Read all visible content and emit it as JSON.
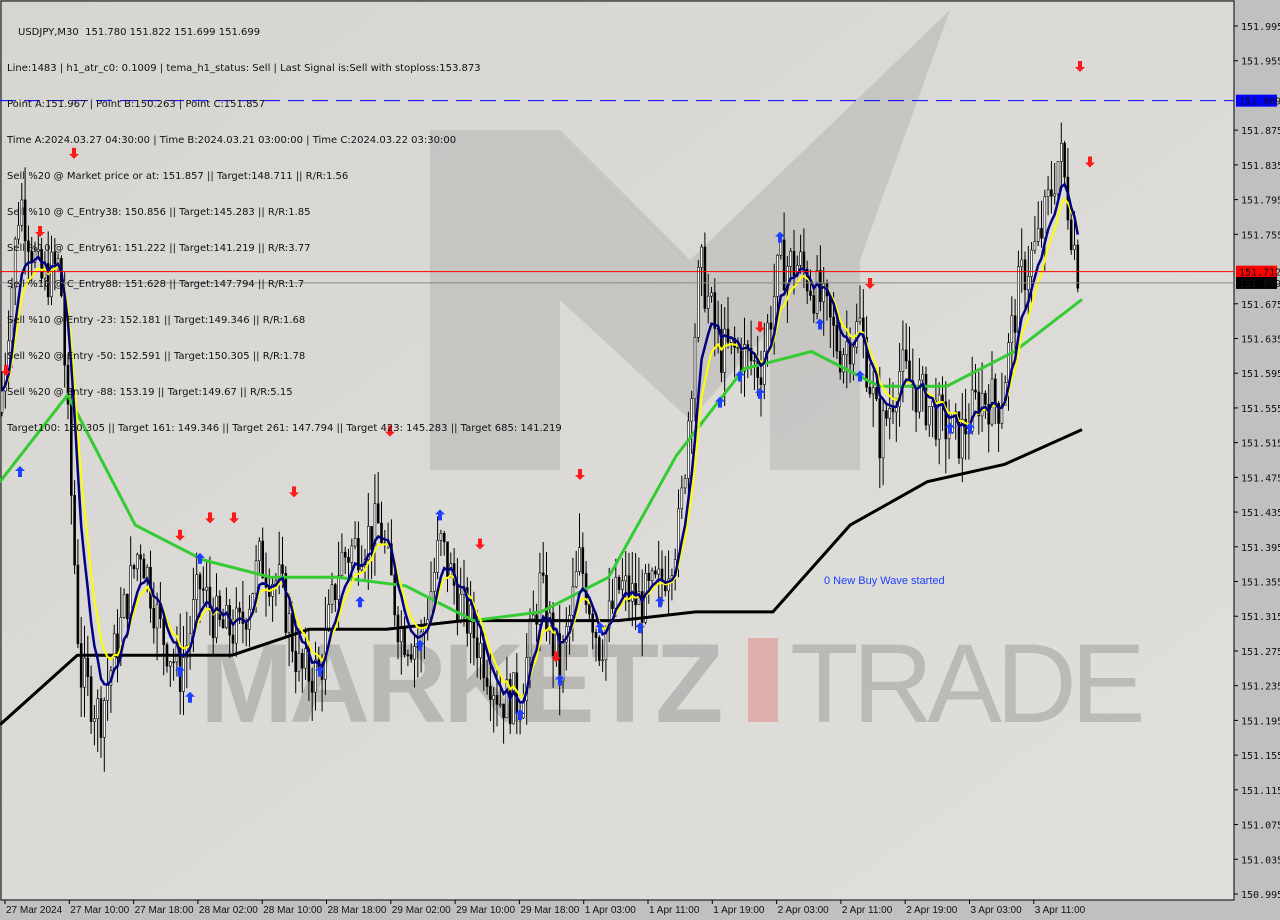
{
  "header": {
    "title": "USDJPY,M30  151.780 151.822 151.699 151.699",
    "lines": [
      "Line:1483 | h1_atr_c0: 0.1009 | tema_h1_status: Sell | Last Signal is:Sell with stoploss:153.873",
      "Point A:151.967 | Point B:150.263 | Point C:151.857",
      "Time A:2024.03.27 04:30:00 | Time B:2024.03.21 03:00:00 | Time C:2024.03.22 03:30:00",
      "Sell %20 @ Market price or at: 151.857 || Target:148.711 || R/R:1.56",
      "Sell %10 @ C_Entry38: 150.856 || Target:145.283 || R/R:1.85",
      "Sell %10 @ C_Entry61: 151.222 || Target:141.219 || R/R:3.77",
      "Sell %10 @ C_Entry88: 151.628 || Target:147.794 || R/R:1.7",
      "Sell %10 @ Entry -23: 152.181 || Target:149.346 || R/R:1.68",
      "Sell %20 @ Entry -50: 152.591 || Target:150.305 || R/R:1.78",
      "Sell %20 @ Entry -88: 153.19 || Target:149.67 || R/R:5.15",
      "Target100: 150.305 || Target 161: 149.346 || Target 261: 147.794 || Target 423: 145.283 || Target 685: 141.219"
    ]
  },
  "watermark": "MARKETZ TRADE",
  "colors": {
    "background": "#d9d8d4",
    "bull_bear_candle": "#000000",
    "ma_slow": "#000000",
    "ma_mid": "#33cc33",
    "ma_fast": "#000080",
    "ma_signal": "#ffff00",
    "buy_arrow": "#1f3fff",
    "sell_arrow": "#ff1a1a",
    "resistance_line": "#0000ff",
    "bid_line": "#ff0000",
    "envelope": "#ff6600"
  },
  "chart_data": {
    "type": "candlestick",
    "symbol": "USDJPY",
    "timeframe": "M30",
    "ylim": [
      150.975,
      152.03
    ],
    "y_ticks": [
      "151.995",
      "151.955",
      "151.875",
      "151.835",
      "151.795",
      "151.755",
      "151.675",
      "151.635",
      "151.595",
      "151.555",
      "151.515",
      "151.475",
      "151.435",
      "151.395",
      "151.355",
      "151.315",
      "151.275",
      "151.235",
      "151.195",
      "151.155",
      "151.115",
      "151.075",
      "151.035",
      "150.995"
    ],
    "x_ticks": [
      "27 Mar 2024",
      "27 Mar 10:00",
      "27 Mar 18:00",
      "28 Mar 02:00",
      "28 Mar 10:00",
      "28 Mar 18:00",
      "29 Mar 02:00",
      "29 Mar 10:00",
      "29 Mar 18:00",
      "1 Apr 03:00",
      "1 Apr 11:00",
      "1 Apr 19:00",
      "2 Apr 03:00",
      "2 Apr 11:00",
      "2 Apr 19:00",
      "3 Apr 03:00",
      "3 Apr 11:00"
    ],
    "close_path": [
      151.55,
      151.8,
      151.7,
      151.72,
      151.25,
      151.2,
      151.3,
      151.4,
      151.3,
      151.25,
      151.35,
      151.3,
      151.3,
      151.38,
      151.35,
      151.25,
      151.25,
      151.38,
      151.4,
      151.42,
      151.3,
      151.28,
      151.4,
      151.33,
      151.28,
      151.22,
      151.22,
      151.35,
      151.25,
      151.38,
      151.28,
      151.35,
      151.33,
      151.35,
      151.42,
      151.72,
      151.62,
      151.62,
      151.6,
      151.72,
      151.72,
      151.68,
      151.62,
      151.65,
      151.52,
      151.6,
      151.57,
      151.54,
      151.52,
      151.57,
      151.56,
      151.7,
      151.75,
      151.85,
      151.7
    ],
    "ma_slow": [
      151.19,
      151.27,
      151.27,
      151.27,
      151.3,
      151.3,
      151.31,
      151.31,
      151.31,
      151.32,
      151.32,
      151.42,
      151.47,
      151.49,
      151.53
    ],
    "ma_mid": [
      151.47,
      151.57,
      151.42,
      151.38,
      151.36,
      151.36,
      151.35,
      151.31,
      151.32,
      151.36,
      151.5,
      151.6,
      151.62,
      151.58,
      151.58,
      151.62,
      151.68
    ],
    "levels": [
      {
        "label": "151.909",
        "price": 151.909,
        "color": "#0000ff",
        "style": "dashed"
      },
      {
        "label": "151.712",
        "price": 151.712,
        "color": "#ff0000",
        "style": "solid"
      },
      {
        "label": "151.699",
        "price": 151.699,
        "color": "#000000",
        "style": "solid"
      }
    ],
    "buy_arrows": [
      [
        1,
        151.48
      ],
      [
        9,
        151.25
      ],
      [
        9.5,
        151.22
      ],
      [
        10,
        151.38
      ],
      [
        16,
        151.25
      ],
      [
        18,
        151.33
      ],
      [
        21,
        151.28
      ],
      [
        22,
        151.43
      ],
      [
        26,
        151.2
      ],
      [
        28,
        151.24
      ],
      [
        30,
        151.3
      ],
      [
        32,
        151.3
      ],
      [
        33,
        151.33
      ],
      [
        36,
        151.56
      ],
      [
        37,
        151.59
      ],
      [
        38,
        151.57
      ],
      [
        39,
        151.75
      ],
      [
        41,
        151.65
      ],
      [
        43,
        151.59
      ],
      [
        47.5,
        151.53
      ],
      [
        48.5,
        151.53
      ]
    ],
    "sell_arrows": [
      [
        0.3,
        151.6
      ],
      [
        2,
        151.76
      ],
      [
        3.7,
        151.85
      ],
      [
        9,
        151.41
      ],
      [
        10.5,
        151.43
      ],
      [
        11.7,
        151.43
      ],
      [
        14.7,
        151.46
      ],
      [
        19.5,
        151.53
      ],
      [
        24,
        151.4
      ],
      [
        27.8,
        151.27
      ],
      [
        29,
        151.48
      ],
      [
        38,
        151.65
      ],
      [
        43.5,
        151.7
      ],
      [
        54,
        151.95
      ],
      [
        54.5,
        151.84
      ]
    ],
    "annotation": "0 New Buy Wave started"
  }
}
